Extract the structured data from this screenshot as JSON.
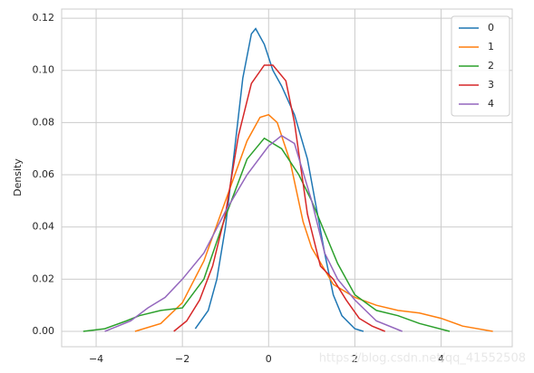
{
  "chart_data": {
    "type": "line",
    "ylabel": "Density",
    "grid": true,
    "legend": "upper right",
    "xlim": [
      -4.8,
      5.65
    ],
    "ylim": [
      -0.0059,
      0.1235
    ],
    "xticks": [
      {
        "value": -4,
        "label": "−4"
      },
      {
        "value": -2,
        "label": "−2"
      },
      0,
      2,
      4
    ],
    "yticks": [
      {
        "value": 0,
        "label": "0.00"
      },
      0.02,
      0.04,
      0.06,
      0.08,
      {
        "value": 0.1,
        "label": "0.10"
      },
      0.12
    ],
    "series": [
      {
        "name": "0",
        "color": "#1f77b4",
        "x": [
          -1.7,
          -1.4,
          -1.2,
          -1.0,
          -0.8,
          -0.6,
          -0.4,
          -0.3,
          -0.1,
          0.1,
          0.3,
          0.6,
          0.9,
          1.1,
          1.3,
          1.5,
          1.7,
          2.0,
          2.2
        ],
        "values": [
          0.001,
          0.008,
          0.02,
          0.04,
          0.068,
          0.097,
          0.114,
          0.116,
          0.11,
          0.1,
          0.094,
          0.083,
          0.066,
          0.048,
          0.03,
          0.014,
          0.006,
          0.001,
          0.0
        ]
      },
      {
        "name": "1",
        "color": "#ff7f0e",
        "x": [
          -3.1,
          -2.5,
          -2.0,
          -1.5,
          -1.0,
          -0.5,
          -0.2,
          0.0,
          0.2,
          0.5,
          0.8,
          1.0,
          1.5,
          2.0,
          2.5,
          3.0,
          3.5,
          4.0,
          4.5,
          5.2
        ],
        "values": [
          0.0,
          0.003,
          0.011,
          0.027,
          0.05,
          0.073,
          0.082,
          0.083,
          0.08,
          0.065,
          0.042,
          0.032,
          0.018,
          0.013,
          0.01,
          0.008,
          0.007,
          0.005,
          0.002,
          0.0
        ]
      },
      {
        "name": "2",
        "color": "#2ca02c",
        "x": [
          -4.3,
          -3.8,
          -3.3,
          -3.0,
          -2.5,
          -2.0,
          -1.5,
          -1.0,
          -0.5,
          -0.1,
          0.3,
          0.7,
          1.0,
          1.3,
          1.6,
          2.0,
          2.5,
          3.0,
          3.5,
          4.2
        ],
        "values": [
          0.0,
          0.001,
          0.004,
          0.006,
          0.008,
          0.009,
          0.02,
          0.044,
          0.066,
          0.074,
          0.07,
          0.06,
          0.05,
          0.038,
          0.026,
          0.014,
          0.008,
          0.006,
          0.003,
          0.0
        ]
      },
      {
        "name": "3",
        "color": "#d62728",
        "x": [
          -2.2,
          -1.9,
          -1.6,
          -1.3,
          -1.0,
          -0.7,
          -0.4,
          -0.1,
          0.1,
          0.4,
          0.6,
          0.9,
          1.2,
          1.5,
          1.8,
          2.1,
          2.4,
          2.7
        ],
        "values": [
          0.0,
          0.004,
          0.012,
          0.025,
          0.045,
          0.075,
          0.095,
          0.102,
          0.102,
          0.096,
          0.08,
          0.045,
          0.025,
          0.02,
          0.012,
          0.005,
          0.002,
          0.0
        ]
      },
      {
        "name": "4",
        "color": "#9467bd",
        "x": [
          -3.8,
          -3.2,
          -2.8,
          -2.4,
          -2.0,
          -1.5,
          -1.0,
          -0.5,
          0.0,
          0.3,
          0.6,
          1.0,
          1.3,
          1.6,
          2.0,
          2.5,
          3.1
        ],
        "values": [
          0.0,
          0.004,
          0.009,
          0.013,
          0.02,
          0.03,
          0.046,
          0.06,
          0.071,
          0.075,
          0.072,
          0.05,
          0.03,
          0.02,
          0.012,
          0.004,
          0.0
        ]
      }
    ],
    "watermark": "https://blog.csdn.net/qq_41552508"
  }
}
